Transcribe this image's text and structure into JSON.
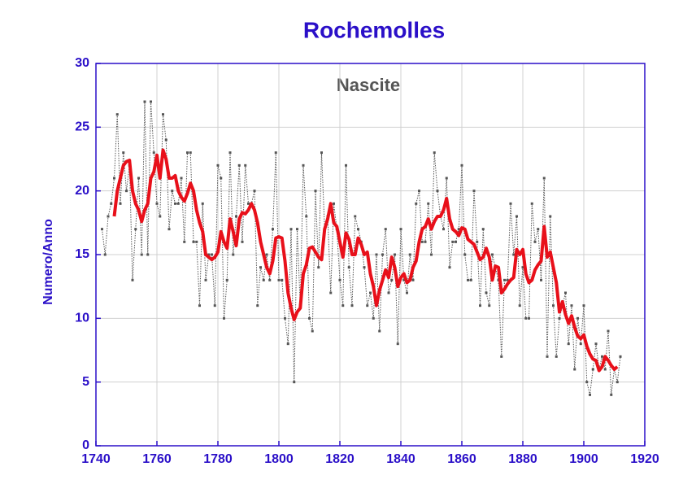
{
  "chart_data": {
    "type": "line",
    "title": "Rochemolles",
    "annotation": "Nascite",
    "ylabel": "Numero/Anno",
    "x": [
      1742,
      1743,
      1744,
      1745,
      1746,
      1747,
      1748,
      1749,
      1750,
      1751,
      1752,
      1753,
      1754,
      1755,
      1756,
      1757,
      1758,
      1759,
      1760,
      1761,
      1762,
      1763,
      1764,
      1765,
      1766,
      1767,
      1768,
      1769,
      1770,
      1771,
      1772,
      1773,
      1774,
      1775,
      1776,
      1777,
      1778,
      1779,
      1780,
      1781,
      1782,
      1783,
      1784,
      1785,
      1786,
      1787,
      1788,
      1789,
      1790,
      1791,
      1792,
      1793,
      1794,
      1795,
      1796,
      1797,
      1798,
      1799,
      1800,
      1801,
      1802,
      1803,
      1804,
      1805,
      1806,
      1807,
      1808,
      1809,
      1810,
      1811,
      1812,
      1813,
      1814,
      1815,
      1816,
      1817,
      1818,
      1819,
      1820,
      1821,
      1822,
      1823,
      1824,
      1825,
      1826,
      1827,
      1828,
      1829,
      1830,
      1831,
      1832,
      1833,
      1834,
      1835,
      1836,
      1837,
      1838,
      1839,
      1840,
      1841,
      1842,
      1843,
      1844,
      1845,
      1846,
      1847,
      1848,
      1849,
      1850,
      1851,
      1852,
      1853,
      1854,
      1855,
      1856,
      1857,
      1858,
      1859,
      1860,
      1861,
      1862,
      1863,
      1864,
      1865,
      1866,
      1867,
      1868,
      1869,
      1870,
      1871,
      1872,
      1873,
      1874,
      1875,
      1876,
      1877,
      1878,
      1879,
      1880,
      1881,
      1882,
      1883,
      1884,
      1885,
      1886,
      1887,
      1888,
      1889,
      1890,
      1891,
      1892,
      1893,
      1894,
      1895,
      1896,
      1897,
      1898,
      1899,
      1900,
      1901,
      1902,
      1903,
      1904,
      1905,
      1906,
      1907,
      1908,
      1909,
      1910,
      1911,
      1912
    ],
    "series": [
      {
        "color": "#555555",
        "style": "dotted",
        "markers": true,
        "values": [
          17,
          15,
          18,
          19,
          21,
          26,
          19,
          23,
          20,
          22,
          13,
          17,
          21,
          15,
          27,
          15,
          27,
          23,
          19,
          18,
          26,
          24,
          17,
          20,
          19,
          19,
          21,
          16,
          23,
          23,
          16,
          16,
          11,
          19,
          13,
          15,
          15,
          11,
          22,
          21,
          10,
          13,
          23,
          15,
          18,
          22,
          16,
          22,
          19,
          19,
          20,
          11,
          14,
          13,
          15,
          13,
          17,
          23,
          13,
          13,
          10,
          8,
          17,
          5,
          17,
          11,
          22,
          18,
          10,
          9,
          20,
          14,
          23,
          17,
          18,
          12,
          19,
          17,
          13,
          11,
          22,
          14,
          11,
          18,
          17,
          16,
          14,
          11,
          12,
          10,
          15,
          9,
          15,
          17,
          12,
          13,
          15,
          8,
          17,
          13,
          12,
          15,
          13,
          19,
          20,
          16,
          16,
          19,
          15,
          23,
          20,
          18,
          17,
          21,
          14,
          16,
          16,
          17,
          22,
          15,
          13,
          13,
          20,
          16,
          11,
          17,
          12,
          11,
          15,
          14,
          13,
          7,
          13,
          13,
          19,
          15,
          18,
          11,
          14,
          10,
          10,
          19,
          16,
          17,
          13,
          21,
          7,
          18,
          11,
          7,
          10,
          11,
          12,
          8,
          11,
          6,
          10,
          8,
          11,
          5,
          4,
          6,
          8,
          6,
          7,
          6,
          9,
          4,
          6,
          5,
          7
        ]
      },
      {
        "color": "#e8101a",
        "style": "solid",
        "markers": false,
        "values": [
          null,
          null,
          null,
          null,
          18,
          20,
          21,
          22,
          22.3,
          22.4,
          20,
          19,
          18.5,
          17.6,
          18.5,
          19,
          21,
          21.5,
          22.8,
          21,
          23.2,
          22.5,
          21,
          21,
          21.2,
          20,
          19.5,
          19.2,
          19.8,
          20.6,
          20,
          18.5,
          17.5,
          16.8,
          15,
          14.8,
          14.6,
          14.8,
          15.2,
          16.8,
          16,
          15.5,
          17.8,
          16.8,
          15.7,
          17.8,
          18.3,
          18.2,
          18.5,
          19,
          18.5,
          17.5,
          16,
          15,
          14,
          13.5,
          14.5,
          16.3,
          16.4,
          16.3,
          14.5,
          12,
          10.8,
          9.9,
          10.5,
          10.8,
          13.5,
          14.2,
          15.5,
          15.6,
          15.2,
          14.8,
          14.6,
          17,
          17.8,
          19,
          17.5,
          17.2,
          16,
          14.8,
          16.7,
          16.2,
          15,
          15,
          16.3,
          15.8,
          15,
          15.2,
          13.5,
          12.5,
          11,
          12.2,
          13,
          13.8,
          13.2,
          14.8,
          14,
          12.5,
          13.2,
          13.5,
          12.8,
          13,
          14,
          14.5,
          16,
          17,
          17.2,
          17.8,
          17,
          17.6,
          18,
          18,
          18.5,
          19.4,
          17.8,
          17,
          16.8,
          16.5,
          17.1,
          17,
          16.2,
          16,
          15.8,
          15.2,
          14.6,
          14.8,
          15.5,
          14.8,
          13,
          14.1,
          14,
          12,
          12.3,
          12.7,
          13,
          13.2,
          15.4,
          15,
          15.4,
          13.5,
          12.8,
          13,
          13.8,
          14.2,
          14.5,
          17.2,
          14.8,
          15.2,
          14,
          12.8,
          10.5,
          11.3,
          10.3,
          9.6,
          10.2,
          9.3,
          8.6,
          8.4,
          8.7,
          7.8,
          7.2,
          6.8,
          6.7,
          5.9,
          6.2,
          7,
          6.7,
          6.3,
          6,
          6.2,
          null
        ]
      }
    ],
    "xlim": [
      1740,
      1920
    ],
    "xticks": [
      1740,
      1760,
      1780,
      1800,
      1820,
      1840,
      1860,
      1880,
      1900,
      1920
    ],
    "ylim": [
      0,
      30
    ],
    "yticks": [
      0,
      5,
      10,
      15,
      20,
      25,
      30
    ],
    "grid": true
  }
}
